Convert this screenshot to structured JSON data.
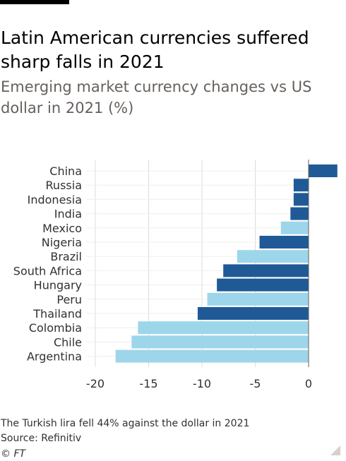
{
  "header": {
    "title": "Latin American currencies suffered sharp falls in 2021",
    "subtitle": "Emerging market currency changes vs US dollar in 2021 (%)"
  },
  "footer": {
    "note": "The Turkish lira fell 44% against the dollar in 2021",
    "source": "Source: Refinitiv",
    "copyright": "© FT"
  },
  "colors": {
    "dark_bar": "#1f5a96",
    "light_bar": "#9dd6ea",
    "gridline": "#e1dcd6",
    "zero_line": "#66605c",
    "text": "#33302e"
  },
  "chart_data": {
    "type": "bar",
    "orientation": "horizontal",
    "categories": [
      "China",
      "Russia",
      "Indonesia",
      "India",
      "Mexico",
      "Nigeria",
      "Brazil",
      "South Africa",
      "Hungary",
      "Peru",
      "Thailand",
      "Colombia",
      "Chile",
      "Argentina"
    ],
    "values": [
      2.7,
      -1.4,
      -1.4,
      -1.7,
      -2.6,
      -4.6,
      -6.7,
      -8.0,
      -8.6,
      -9.5,
      -10.4,
      -16.0,
      -16.6,
      -18.1
    ],
    "highlight": [
      "dark",
      "dark",
      "dark",
      "dark",
      "light",
      "dark",
      "light",
      "dark",
      "dark",
      "light",
      "dark",
      "light",
      "light",
      "light"
    ],
    "xlim": [
      -20,
      3
    ],
    "xticks": [
      -20,
      -15,
      -10,
      -5,
      0
    ],
    "xtick_labels": [
      "-20",
      "-15",
      "-10",
      "-5",
      "0"
    ],
    "grid": true
  }
}
